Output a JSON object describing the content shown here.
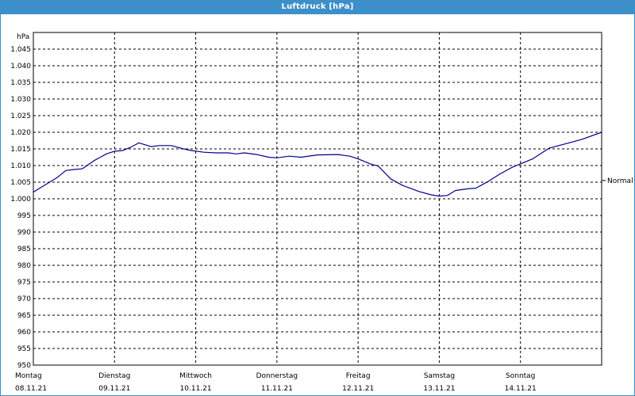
{
  "window": {
    "title": "Luftdruck [hPa]"
  },
  "colors": {
    "titlebar": "#3c8fc8",
    "line": "#00008b",
    "grid": "#000000"
  },
  "chart_data": {
    "type": "line",
    "title": "Luftdruck [hPa]",
    "ylabel": "hPa",
    "xlabel": "",
    "ylim": [
      950,
      1050
    ],
    "yticks": [
      950,
      955,
      960,
      965,
      970,
      975,
      980,
      985,
      990,
      995,
      1000,
      1005,
      1010,
      1015,
      1020,
      1025,
      1030,
      1035,
      1040,
      1045
    ],
    "ytick_labels": [
      "950",
      "955",
      "960",
      "965",
      "970",
      "975",
      "980",
      "985",
      "990",
      "995",
      "1.000",
      "1.005",
      "1.010",
      "1.015",
      "1.020",
      "1.025",
      "1.030",
      "1.035",
      "1.040",
      "1.045"
    ],
    "xlim": [
      0,
      7
    ],
    "day_labels": [
      {
        "day": "Montag",
        "date": "08.11.21"
      },
      {
        "day": "Dienstag",
        "date": "09.11.21"
      },
      {
        "day": "Mittwoch",
        "date": "10.11.21"
      },
      {
        "day": "Donnerstag",
        "date": "11.11.21"
      },
      {
        "day": "Freitag",
        "date": "12.11.21"
      },
      {
        "day": "Samstag",
        "date": "13.11.21"
      },
      {
        "day": "Sonntag",
        "date": "14.11.21"
      }
    ],
    "reference_line": {
      "label": "Normal",
      "value": 1005.5
    },
    "grid": true,
    "series": [
      {
        "x": [
          0,
          0.1,
          0.2,
          0.3,
          0.4,
          0.5,
          0.6,
          0.75,
          0.9,
          1.0,
          1.1,
          1.2,
          1.3,
          1.45,
          1.55,
          1.7,
          1.85,
          1.95,
          2.1,
          2.25,
          2.4,
          2.5,
          2.6,
          2.75,
          2.9,
          3.0,
          3.15,
          3.3,
          3.5,
          3.75,
          3.9,
          4.0,
          4.15,
          4.25,
          4.4,
          4.55,
          4.75,
          4.9,
          5.0,
          5.1,
          5.2,
          5.35,
          5.45,
          5.6,
          5.75,
          5.9,
          6.0,
          6.15,
          6.35,
          6.55,
          6.75,
          7.0
        ],
        "y": [
          1002,
          1003.5,
          1005,
          1006.5,
          1008.5,
          1008.8,
          1009,
          1011.5,
          1013.5,
          1014.3,
          1014.5,
          1015.5,
          1016.8,
          1015.7,
          1016,
          1016,
          1015,
          1014.5,
          1014,
          1013.8,
          1013.8,
          1013.5,
          1013.8,
          1013.3,
          1012.5,
          1012.3,
          1012.8,
          1012.5,
          1013.2,
          1013.3,
          1012.8,
          1012,
          1010.5,
          1009.8,
          1006,
          1004,
          1002.2,
          1001.2,
          1000.8,
          1001,
          1002.5,
          1003,
          1003.2,
          1005.2,
          1007.5,
          1009.5,
          1010.5,
          1012,
          1015.2,
          1016.5,
          1017.8,
          1020
        ]
      }
    ]
  }
}
